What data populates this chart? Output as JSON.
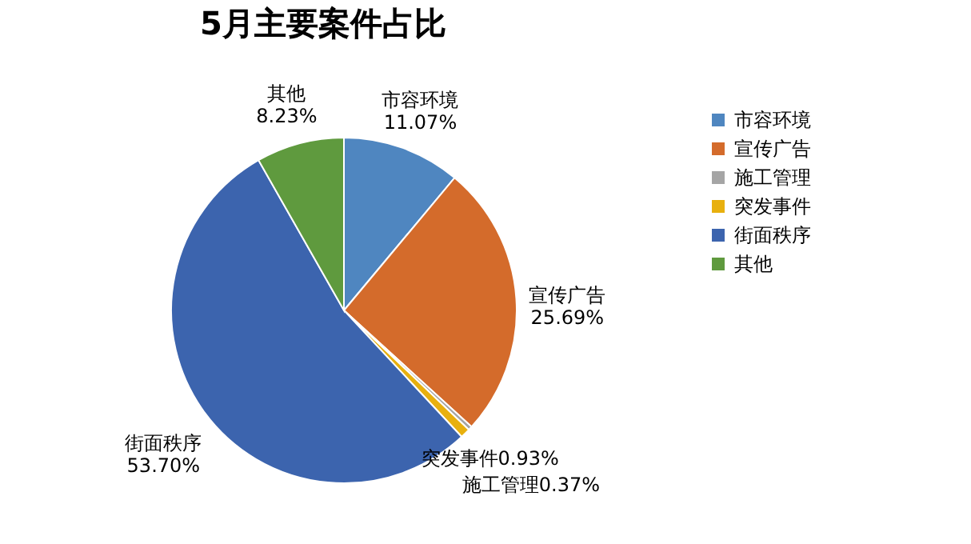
{
  "chart_data": {
    "type": "pie",
    "title": "5月主要案件占比",
    "categories": [
      "市容环境",
      "宣传广告",
      "施工管理",
      "突发事件",
      "街面秩序",
      "其他"
    ],
    "values": [
      11.07,
      25.69,
      0.37,
      0.93,
      53.7,
      8.23
    ],
    "value_labels": [
      "11.07%",
      "25.69%",
      "0.37%",
      "0.93%",
      "53.70%",
      "8.23%"
    ],
    "colors": [
      "#4f86c0",
      "#d46b2b",
      "#a5a5a5",
      "#e8b00e",
      "#3c64ae",
      "#5f9a3e"
    ],
    "legend": "right"
  }
}
